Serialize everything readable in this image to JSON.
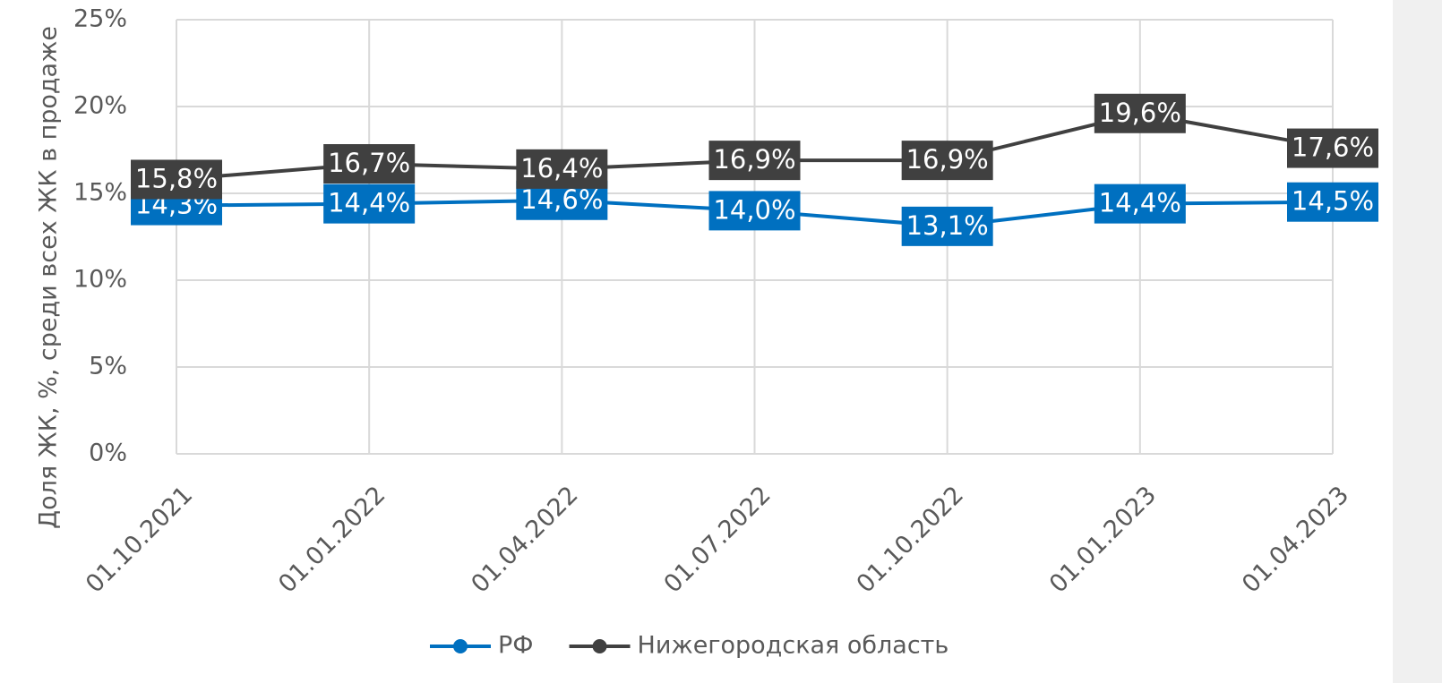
{
  "chart_data": {
    "type": "line",
    "y_label": "Доля ЖК, %, среди всех ЖК в продаже",
    "categories": [
      "01.10.2021",
      "01.01.2022",
      "01.04.2022",
      "01.07.2022",
      "01.10.2022",
      "01.01.2023",
      "01.04.2023"
    ],
    "series": [
      {
        "name": "РФ",
        "color": "#0070c0",
        "values": [
          14.3,
          14.4,
          14.6,
          14.0,
          13.1,
          14.4,
          14.5
        ],
        "value_labels": [
          "14,3%",
          "14,4%",
          "14,6%",
          "14,0%",
          "13,1%",
          "14,4%",
          "14,5%"
        ]
      },
      {
        "name": "Нижегородская область",
        "color": "#404040",
        "values": [
          15.8,
          16.7,
          16.4,
          16.9,
          16.9,
          19.6,
          17.6
        ],
        "value_labels": [
          "15,8%",
          "16,7%",
          "16,4%",
          "16,9%",
          "16,9%",
          "19,6%",
          "17,6%"
        ]
      }
    ],
    "ylim": [
      0,
      25
    ],
    "yticks": [
      {
        "value": 0,
        "label": "0%"
      },
      {
        "value": 5,
        "label": "5%"
      },
      {
        "value": 10,
        "label": "10%"
      },
      {
        "value": 15,
        "label": "15%"
      },
      {
        "value": 20,
        "label": "20%"
      },
      {
        "value": 25,
        "label": "25%"
      }
    ],
    "grid": true,
    "legend": "bottom"
  }
}
